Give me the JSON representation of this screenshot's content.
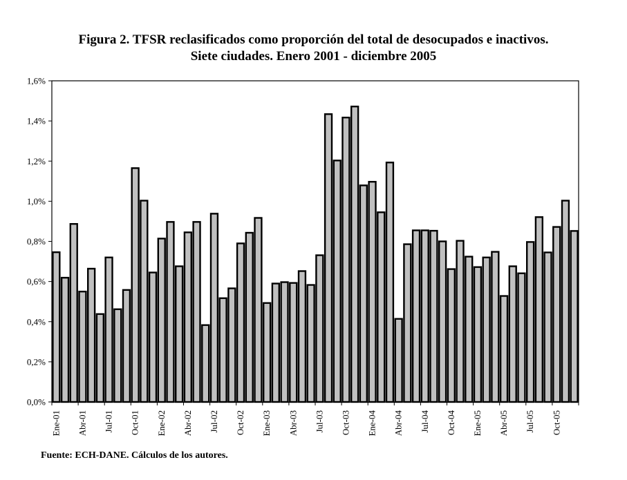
{
  "chart_data": {
    "type": "bar",
    "title": "Figura 2. TFSR reclasificados como proporción del total de desocupados e inactivos.",
    "subtitle": "Siete ciudades. Enero 2001 - diciembre 2005",
    "xlabel": "",
    "ylabel": "",
    "ylim": [
      0,
      1.6
    ],
    "yticks": [
      0.0,
      0.2,
      0.4,
      0.6,
      0.8,
      1.0,
      1.2,
      1.4,
      1.6
    ],
    "ytick_labels": [
      "0,0%",
      "0,2%",
      "0,4%",
      "0,6%",
      "0,8%",
      "1,0%",
      "1,2%",
      "1,4%",
      "1,6%"
    ],
    "xtick_labels": [
      "Ene-01",
      "Abr-01",
      "Jul-01",
      "Oct-01",
      "Ene-02",
      "Abr-02",
      "Jul-02",
      "Oct-02",
      "Ene-03",
      "Abr-03",
      "Jul-03",
      "Oct-03",
      "Ene-04",
      "Abr-04",
      "Jul-04",
      "Oct-04",
      "Ene-05",
      "Abr-05",
      "Jul-05",
      "Oct-05"
    ],
    "xtick_every": 3,
    "grid": false,
    "legend": "none",
    "unit": "%",
    "bar_color": "#c0c0c0",
    "bar_edge_color": "#000000",
    "categories": [
      "Ene-01",
      "Feb-01",
      "Mar-01",
      "Abr-01",
      "May-01",
      "Jun-01",
      "Jul-01",
      "Ago-01",
      "Sep-01",
      "Oct-01",
      "Nov-01",
      "Dic-01",
      "Ene-02",
      "Feb-02",
      "Mar-02",
      "Abr-02",
      "May-02",
      "Jun-02",
      "Jul-02",
      "Ago-02",
      "Sep-02",
      "Oct-02",
      "Nov-02",
      "Dic-02",
      "Ene-03",
      "Feb-03",
      "Mar-03",
      "Abr-03",
      "May-03",
      "Jun-03",
      "Jul-03",
      "Ago-03",
      "Sep-03",
      "Oct-03",
      "Nov-03",
      "Dic-03",
      "Ene-04",
      "Feb-04",
      "Mar-04",
      "Abr-04",
      "May-04",
      "Jun-04",
      "Jul-04",
      "Ago-04",
      "Sep-04",
      "Oct-04",
      "Nov-04",
      "Dic-04",
      "Ene-05",
      "Feb-05",
      "Mar-05",
      "Abr-05",
      "May-05",
      "Jun-05",
      "Jul-05",
      "Ago-05",
      "Sep-05",
      "Oct-05",
      "Nov-05",
      "Dic-05"
    ],
    "values": [
      0.746,
      0.619,
      0.887,
      0.55,
      0.664,
      0.438,
      0.72,
      0.462,
      0.558,
      1.165,
      1.003,
      0.645,
      0.814,
      0.897,
      0.676,
      0.845,
      0.897,
      0.383,
      0.938,
      0.517,
      0.566,
      0.79,
      0.843,
      0.917,
      0.493,
      0.59,
      0.597,
      0.593,
      0.652,
      0.583,
      0.731,
      1.434,
      1.203,
      1.417,
      1.472,
      1.079,
      1.097,
      0.945,
      1.193,
      0.414,
      0.786,
      0.855,
      0.855,
      0.853,
      0.8,
      0.662,
      0.803,
      0.724,
      0.672,
      0.72,
      0.748,
      0.528,
      0.676,
      0.641,
      0.797,
      0.921,
      0.745,
      0.872,
      1.003,
      0.852
    ],
    "source": "Fuente: ECH-DANE. Cálculos de los autores."
  }
}
